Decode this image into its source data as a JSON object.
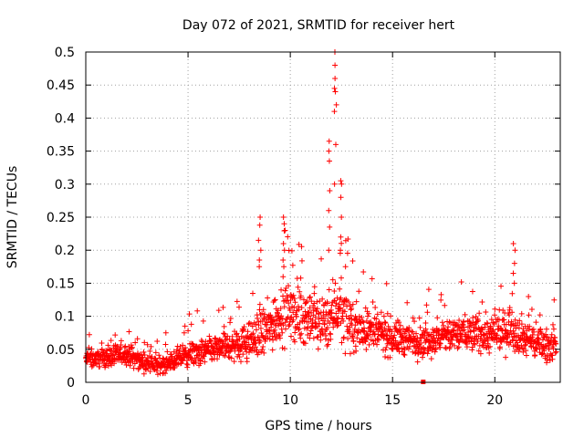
{
  "chart_data": {
    "type": "scatter",
    "title": "Day 072 of 2021, SRMTID for receiver hert",
    "xlabel": "GPS time / hours",
    "ylabel": "SRMTID / TECUs",
    "xlim": [
      0,
      23.2
    ],
    "ylim": [
      0,
      0.5
    ],
    "xticks": [
      0,
      5,
      10,
      15,
      20
    ],
    "yticks": [
      0,
      0.05,
      0.1,
      0.15,
      0.2,
      0.25,
      0.3,
      0.35,
      0.4,
      0.45,
      0.5
    ],
    "xtick_labels": [
      "0",
      "5",
      "10",
      "15",
      "20"
    ],
    "ytick_labels": [
      "0",
      "0.05",
      "0.1",
      "0.15",
      "0.2",
      "0.25",
      "0.3",
      "0.35",
      "0.4",
      "0.45",
      "0.5"
    ],
    "grid": true,
    "marker": "+",
    "color": "#ff0000",
    "profile": {
      "hours": [
        0,
        1,
        2,
        3,
        3.5,
        4,
        5,
        6,
        7,
        8,
        8.5,
        9,
        9.5,
        10,
        11,
        11.5,
        12,
        12.3,
        12.6,
        13,
        14,
        15,
        16,
        17,
        18,
        19,
        20,
        20.8,
        21.3,
        22,
        23
      ],
      "median": [
        0.035,
        0.038,
        0.042,
        0.028,
        0.025,
        0.03,
        0.042,
        0.048,
        0.055,
        0.062,
        0.07,
        0.085,
        0.105,
        0.11,
        0.095,
        0.09,
        0.1,
        0.12,
        0.1,
        0.085,
        0.078,
        0.068,
        0.062,
        0.065,
        0.072,
        0.075,
        0.07,
        0.085,
        0.07,
        0.062,
        0.055
      ],
      "spread": [
        0.012,
        0.012,
        0.013,
        0.012,
        0.011,
        0.013,
        0.016,
        0.018,
        0.02,
        0.025,
        0.03,
        0.035,
        0.04,
        0.04,
        0.035,
        0.035,
        0.04,
        0.045,
        0.04,
        0.032,
        0.028,
        0.025,
        0.022,
        0.022,
        0.025,
        0.025,
        0.025,
        0.03,
        0.025,
        0.022,
        0.02
      ]
    },
    "spikes": [
      {
        "x": 8.5,
        "values": [
          0.25,
          0.238,
          0.215,
          0.2,
          0.185,
          0.175
        ]
      },
      {
        "x": 9.7,
        "values": [
          0.25,
          0.24,
          0.23,
          0.21,
          0.2,
          0.185
        ]
      },
      {
        "x": 11.9,
        "values": [
          0.365,
          0.35,
          0.335,
          0.29,
          0.26,
          0.235,
          0.2
        ]
      },
      {
        "x": 12.2,
        "values": [
          0.5,
          0.48,
          0.46,
          0.445,
          0.44,
          0.42,
          0.41,
          0.36,
          0.3
        ]
      },
      {
        "x": 12.45,
        "values": [
          0.305,
          0.3,
          0.28,
          0.25,
          0.22,
          0.2
        ]
      },
      {
        "x": 20.95,
        "values": [
          0.21,
          0.2,
          0.18,
          0.165,
          0.15
        ]
      }
    ],
    "outlier": {
      "x": 16.5,
      "y": 0.0
    }
  }
}
